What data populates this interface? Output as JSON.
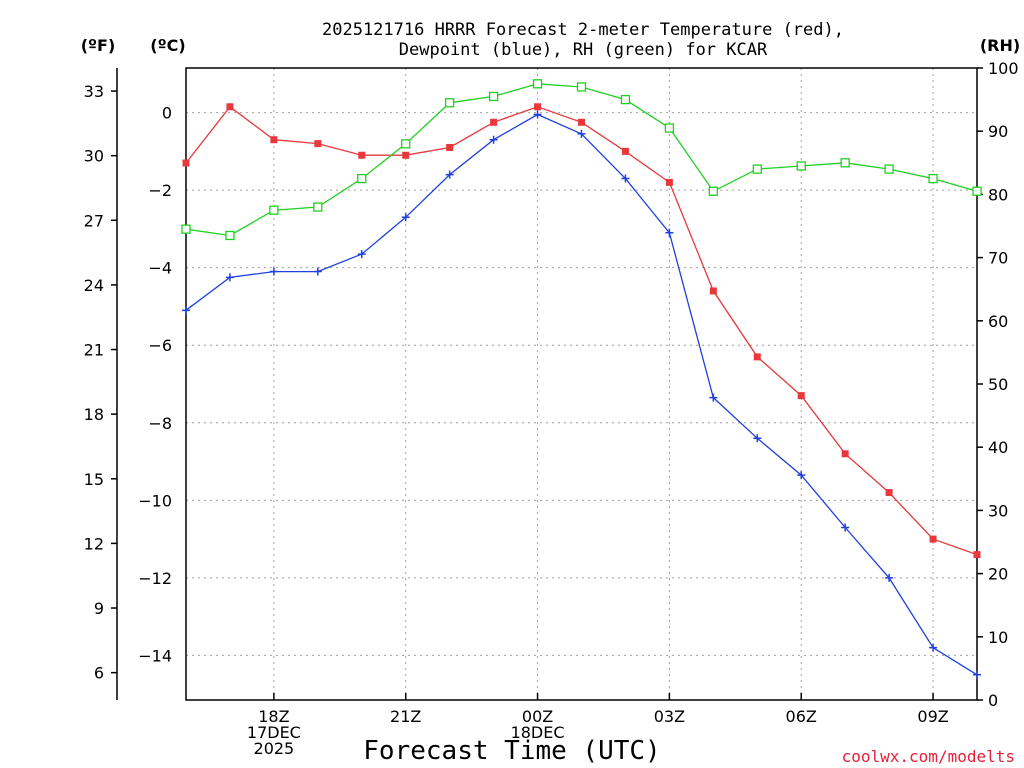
{
  "chart_data": {
    "type": "line",
    "title_line1": "2025121716 HRRR Forecast 2-meter Temperature (red),",
    "title_line2": "Dewpoint (blue), RH (green) for KCAR",
    "xlabel": "Forecast Time (UTC)",
    "credit": "coolwx.com/modelts",
    "unit_f": "(ºF)",
    "unit_c": "(ºC)",
    "unit_rh": "(RH)",
    "x_hours": [
      16,
      17,
      18,
      19,
      20,
      21,
      22,
      23,
      24,
      25,
      26,
      27,
      28,
      29,
      30,
      31,
      32,
      33,
      34
    ],
    "xlim": [
      16,
      34
    ],
    "ylim_c": [
      -15.15,
      1.15
    ],
    "ylim_rh": [
      0,
      100
    ],
    "c_ticks": [
      {
        "v": 0,
        "label": "0"
      },
      {
        "v": -2,
        "label": "−2"
      },
      {
        "v": -4,
        "label": "−4"
      },
      {
        "v": -6,
        "label": "−6"
      },
      {
        "v": -8,
        "label": "−8"
      },
      {
        "v": -10,
        "label": "−10"
      },
      {
        "v": -12,
        "label": "−12"
      },
      {
        "v": -14,
        "label": "−14"
      }
    ],
    "f_ticks": [
      {
        "v": 33,
        "label": "33"
      },
      {
        "v": 30,
        "label": "30"
      },
      {
        "v": 27,
        "label": "27"
      },
      {
        "v": 24,
        "label": "24"
      },
      {
        "v": 21,
        "label": "21"
      },
      {
        "v": 18,
        "label": "18"
      },
      {
        "v": 15,
        "label": "15"
      },
      {
        "v": 12,
        "label": "12"
      },
      {
        "v": 9,
        "label": "9"
      },
      {
        "v": 6,
        "label": "6"
      }
    ],
    "rh_ticks": [
      {
        "v": 100,
        "label": "100"
      },
      {
        "v": 90,
        "label": "90"
      },
      {
        "v": 80,
        "label": "80"
      },
      {
        "v": 70,
        "label": "70"
      },
      {
        "v": 60,
        "label": "60"
      },
      {
        "v": 50,
        "label": "50"
      },
      {
        "v": 40,
        "label": "40"
      },
      {
        "v": 30,
        "label": "30"
      },
      {
        "v": 20,
        "label": "20"
      },
      {
        "v": 10,
        "label": "10"
      },
      {
        "v": 0,
        "label": "0"
      }
    ],
    "x_ticks": [
      {
        "hour": 18,
        "lines": [
          "18Z",
          "17DEC",
          "2025"
        ]
      },
      {
        "hour": 21,
        "lines": [
          "21Z"
        ]
      },
      {
        "hour": 24,
        "lines": [
          "00Z",
          "18DEC"
        ]
      },
      {
        "hour": 27,
        "lines": [
          "03Z"
        ]
      },
      {
        "hour": 30,
        "lines": [
          "06Z"
        ]
      },
      {
        "hour": 33,
        "lines": [
          "09Z"
        ]
      }
    ],
    "series": [
      {
        "name": "Temperature",
        "axis": "c",
        "color": "#e8383c",
        "marker": "filled-square",
        "values": [
          -1.3,
          0.15,
          -0.7,
          -0.8,
          -1.1,
          -1.1,
          -0.9,
          -0.25,
          0.15,
          -0.25,
          -1.0,
          -1.8,
          -4.6,
          -6.3,
          -7.3,
          -8.8,
          -9.8,
          -11.0,
          -11.4
        ]
      },
      {
        "name": "Dewpoint",
        "axis": "c",
        "color": "#2040e0",
        "marker": "plus",
        "values": [
          -5.1,
          -4.25,
          -4.1,
          -4.1,
          -3.65,
          -2.7,
          -1.6,
          -0.7,
          -0.05,
          -0.55,
          -1.7,
          -3.1,
          -7.35,
          -8.4,
          -9.35,
          -10.7,
          -12.0,
          -13.8,
          -14.5
        ]
      },
      {
        "name": "RH",
        "axis": "rh",
        "color": "#20d020",
        "marker": "open-square",
        "values": [
          74.5,
          73.5,
          77.5,
          78,
          82.5,
          88,
          94.5,
          95.5,
          97.5,
          97,
          95,
          90.5,
          80.5,
          84,
          84.5,
          85,
          84,
          82.5,
          80.5
        ]
      }
    ]
  }
}
